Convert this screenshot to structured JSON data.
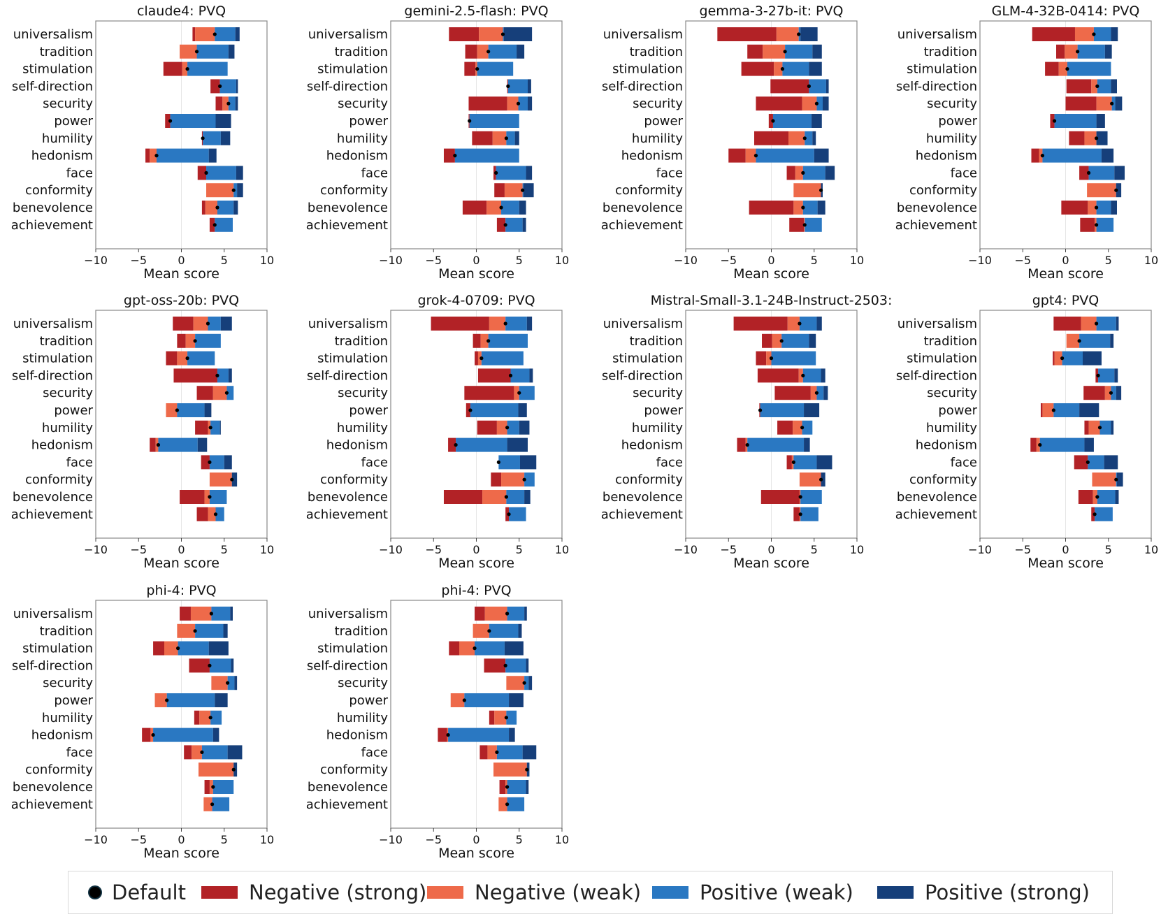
{
  "chart_data": {
    "type": "bar",
    "subtype": "stacked-horizontal-diverging",
    "xlabel": "Mean score",
    "xlim": [
      -10,
      10
    ],
    "xticks": [
      "−10",
      "−5",
      "0",
      "5",
      "10"
    ],
    "categories": [
      "universalism",
      "tradition",
      "stimulation",
      "self-direction",
      "security",
      "power",
      "humility",
      "hedonism",
      "face",
      "conformity",
      "benevolence",
      "achievement"
    ],
    "series_order": [
      "neg_strong",
      "neg_weak",
      "pos_weak",
      "pos_strong"
    ],
    "colors": {
      "neg_strong": "#b22226",
      "neg_weak": "#ee6a4a",
      "pos_weak": "#2a78c2",
      "pos_strong": "#163f7a",
      "default": "#000000",
      "axis": "#888888",
      "grid": "#e6e6e6"
    },
    "legend": {
      "default": "Default",
      "neg_strong": "Negative (strong)",
      "neg_weak": "Negative (weak)",
      "pos_weak": "Positive (weak)",
      "pos_strong": "Positive (strong)"
    },
    "panels": [
      {
        "title": "claude4: PVQ",
        "bars": [
          {
            "ns": 1.3,
            "nw": 1.6,
            "d": 3.9,
            "pw": 6.3,
            "ps": 6.8
          },
          {
            "ns": -0.2,
            "nw": -0.2,
            "d": 1.8,
            "pw": 5.5,
            "ps": 6.2
          },
          {
            "ns": -2.1,
            "nw": 0.1,
            "d": 0.7,
            "pw": 5.4,
            "ps": 5.4
          },
          {
            "ns": 3.4,
            "nw": 4.5,
            "d": 4.5,
            "pw": 6.4,
            "ps": 6.6
          },
          {
            "ns": 4.0,
            "nw": 4.8,
            "d": 5.5,
            "pw": 6.3,
            "ps": 6.6
          },
          {
            "ns": -1.9,
            "nw": -1.3,
            "d": -1.3,
            "pw": 4.0,
            "ps": 5.8
          },
          {
            "ns": 2.4,
            "nw": 2.5,
            "d": 2.5,
            "pw": 4.6,
            "ps": 5.7
          },
          {
            "ns": -4.2,
            "nw": -3.7,
            "d": -2.9,
            "pw": 3.2,
            "ps": 4.1
          },
          {
            "ns": 1.9,
            "nw": 2.9,
            "d": 2.9,
            "pw": 6.4,
            "ps": 7.2
          },
          {
            "ns": 2.9,
            "nw": 2.9,
            "d": 6.1,
            "pw": 6.5,
            "ps": 7.2
          },
          {
            "ns": 2.4,
            "nw": 2.8,
            "d": 4.2,
            "pw": 6.1,
            "ps": 6.6
          },
          {
            "ns": 3.3,
            "nw": 3.9,
            "d": 3.9,
            "pw": 6.0,
            "ps": 6.0
          }
        ]
      },
      {
        "title": "gemini-2.5-flash: PVQ",
        "bars": [
          {
            "ns": -3.2,
            "nw": 0.3,
            "d": 3.1,
            "pw": 3.2,
            "ps": 6.5
          },
          {
            "ns": -1.3,
            "nw": 0.1,
            "d": 1.4,
            "pw": 4.7,
            "ps": 5.6
          },
          {
            "ns": -1.4,
            "nw": -0.1,
            "d": 0.1,
            "pw": 4.3,
            "ps": 4.3
          },
          {
            "ns": 3.6,
            "nw": 3.7,
            "d": 3.7,
            "pw": 6.0,
            "ps": 6.4
          },
          {
            "ns": -0.9,
            "nw": 3.6,
            "d": 4.9,
            "pw": 6.0,
            "ps": 6.5
          },
          {
            "ns": -0.9,
            "nw": -0.8,
            "d": -0.8,
            "pw": 5.0,
            "ps": 5.0
          },
          {
            "ns": -0.5,
            "nw": 1.9,
            "d": 3.5,
            "pw": 4.5,
            "ps": 5.0
          },
          {
            "ns": -3.8,
            "nw": -2.5,
            "d": -2.5,
            "pw": 5.0,
            "ps": 5.0
          },
          {
            "ns": 2.0,
            "nw": 2.3,
            "d": 2.3,
            "pw": 5.8,
            "ps": 6.5
          },
          {
            "ns": 2.1,
            "nw": 3.3,
            "d": 5.4,
            "pw": 5.5,
            "ps": 6.7
          },
          {
            "ns": -1.6,
            "nw": 1.2,
            "d": 2.9,
            "pw": 5.0,
            "ps": 5.8
          },
          {
            "ns": 2.4,
            "nw": 3.4,
            "d": 3.4,
            "pw": 5.4,
            "ps": 5.8
          }
        ]
      },
      {
        "title": "gemma-3-27b-it: PVQ",
        "bars": [
          {
            "ns": -6.3,
            "nw": 0.6,
            "d": 3.2,
            "pw": 3.4,
            "ps": 5.4
          },
          {
            "ns": -2.8,
            "nw": -1.0,
            "d": 1.6,
            "pw": 4.8,
            "ps": 5.9
          },
          {
            "ns": -3.5,
            "nw": 0.3,
            "d": 1.3,
            "pw": 4.4,
            "ps": 5.9
          },
          {
            "ns": -0.1,
            "nw": 4.4,
            "d": 4.4,
            "pw": 6.4,
            "ps": 6.7
          },
          {
            "ns": -1.8,
            "nw": 3.6,
            "d": 5.3,
            "pw": 6.0,
            "ps": 6.7
          },
          {
            "ns": -0.3,
            "nw": 0.2,
            "d": 0.2,
            "pw": 4.7,
            "ps": 5.9
          },
          {
            "ns": -2.0,
            "nw": 2.0,
            "d": 3.9,
            "pw": 4.8,
            "ps": 5.2
          },
          {
            "ns": -5.0,
            "nw": -3.0,
            "d": -1.8,
            "pw": 5.0,
            "ps": 6.7
          },
          {
            "ns": 1.8,
            "nw": 2.8,
            "d": 3.7,
            "pw": 6.3,
            "ps": 7.4
          },
          {
            "ns": 2.6,
            "nw": 2.6,
            "d": 5.8,
            "pw": 5.8,
            "ps": 6.0
          },
          {
            "ns": -2.6,
            "nw": 2.6,
            "d": 3.7,
            "pw": 5.4,
            "ps": 6.3
          },
          {
            "ns": 2.1,
            "nw": 3.8,
            "d": 3.9,
            "pw": 5.9,
            "ps": 5.9
          }
        ]
      },
      {
        "title": "GLM-4-32B-0414: PVQ",
        "bars": [
          {
            "ns": -3.9,
            "nw": 1.1,
            "d": 3.3,
            "pw": 5.3,
            "ps": 6.1
          },
          {
            "ns": -1.1,
            "nw": -0.1,
            "d": 1.4,
            "pw": 4.6,
            "ps": 5.4
          },
          {
            "ns": -2.4,
            "nw": -0.8,
            "d": 0.2,
            "pw": 5.3,
            "ps": 5.3
          },
          {
            "ns": 0.1,
            "nw": 3.0,
            "d": 3.7,
            "pw": 5.3,
            "ps": 6.0
          },
          {
            "ns": 0.0,
            "nw": 3.6,
            "d": 5.4,
            "pw": 5.8,
            "ps": 6.6
          },
          {
            "ns": -1.8,
            "nw": -1.3,
            "d": -1.3,
            "pw": 3.6,
            "ps": 4.6
          },
          {
            "ns": 0.4,
            "nw": 2.2,
            "d": 3.6,
            "pw": 3.6,
            "ps": 4.9
          },
          {
            "ns": -4.0,
            "nw": -3.1,
            "d": -2.7,
            "pw": 4.2,
            "ps": 5.6
          },
          {
            "ns": 1.6,
            "nw": 2.7,
            "d": 2.7,
            "pw": 5.7,
            "ps": 6.9
          },
          {
            "ns": 2.5,
            "nw": 2.5,
            "d": 5.9,
            "pw": 5.9,
            "ps": 6.5
          },
          {
            "ns": -0.5,
            "nw": 2.6,
            "d": 3.6,
            "pw": 5.3,
            "ps": 6.0
          },
          {
            "ns": 1.7,
            "nw": 3.4,
            "d": 3.6,
            "pw": 5.6,
            "ps": 5.6
          }
        ]
      },
      {
        "title": "gpt-oss-20b: PVQ",
        "bars": [
          {
            "ns": -1.0,
            "nw": 1.4,
            "d": 3.1,
            "pw": 4.6,
            "ps": 5.9
          },
          {
            "ns": -0.5,
            "nw": 0.5,
            "d": 1.6,
            "pw": 4.6,
            "ps": 4.6
          },
          {
            "ns": -1.8,
            "nw": -0.5,
            "d": 0.7,
            "pw": 3.9,
            "ps": 3.9
          },
          {
            "ns": -0.9,
            "nw": 4.2,
            "d": 4.2,
            "pw": 5.5,
            "ps": 5.9
          },
          {
            "ns": 1.8,
            "nw": 3.7,
            "d": 5.3,
            "pw": 6.1,
            "ps": 6.1
          },
          {
            "ns": -1.8,
            "nw": -1.8,
            "d": -0.5,
            "pw": 2.7,
            "ps": 3.5
          },
          {
            "ns": 1.6,
            "nw": 3.1,
            "d": 3.4,
            "pw": 4.5,
            "ps": 4.6
          },
          {
            "ns": -3.7,
            "nw": -3.0,
            "d": -2.7,
            "pw": 1.9,
            "ps": 3.0
          },
          {
            "ns": 2.3,
            "nw": 3.3,
            "d": 3.3,
            "pw": 5.0,
            "ps": 5.9
          },
          {
            "ns": 3.3,
            "nw": 3.3,
            "d": 5.9,
            "pw": 5.9,
            "ps": 6.5
          },
          {
            "ns": -0.2,
            "nw": 2.7,
            "d": 3.3,
            "pw": 5.3,
            "ps": 5.3
          },
          {
            "ns": 1.8,
            "nw": 3.1,
            "d": 4.0,
            "pw": 5.0,
            "ps": 5.0
          }
        ]
      },
      {
        "title": "grok-4-0709: PVQ",
        "bars": [
          {
            "ns": -5.3,
            "nw": 1.5,
            "d": 3.4,
            "pw": 5.9,
            "ps": 6.5
          },
          {
            "ns": -0.4,
            "nw": 0.5,
            "d": 1.4,
            "pw": 6.0,
            "ps": 6.0
          },
          {
            "ns": -0.2,
            "nw": 0.2,
            "d": 0.6,
            "pw": 5.5,
            "ps": 5.5
          },
          {
            "ns": 0.2,
            "nw": 4.0,
            "d": 4.0,
            "pw": 6.2,
            "ps": 6.6
          },
          {
            "ns": -1.4,
            "nw": 4.4,
            "d": 5.0,
            "pw": 6.8,
            "ps": 6.8
          },
          {
            "ns": -1.2,
            "nw": -0.7,
            "d": -0.7,
            "pw": 4.9,
            "ps": 5.9
          },
          {
            "ns": 0.1,
            "nw": 2.4,
            "d": 3.6,
            "pw": 5.0,
            "ps": 6.2
          },
          {
            "ns": -3.3,
            "nw": -2.4,
            "d": -2.4,
            "pw": 3.6,
            "ps": 6.0
          },
          {
            "ns": 2.6,
            "nw": 2.6,
            "d": 2.6,
            "pw": 5.1,
            "ps": 7.0
          },
          {
            "ns": 1.7,
            "nw": 2.9,
            "d": 5.6,
            "pw": 6.8,
            "ps": 6.8
          },
          {
            "ns": -3.8,
            "nw": 0.7,
            "d": 3.5,
            "pw": 5.6,
            "ps": 6.3
          },
          {
            "ns": 3.4,
            "nw": 3.8,
            "d": 3.8,
            "pw": 5.8,
            "ps": 5.8
          }
        ]
      },
      {
        "title": "Mistral-Small-3.1-24B-Instruct-2503:",
        "bars": [
          {
            "ns": -4.4,
            "nw": 1.9,
            "d": 3.3,
            "pw": 5.3,
            "ps": 5.9
          },
          {
            "ns": -1.1,
            "nw": 0.1,
            "d": 1.2,
            "pw": 4.4,
            "ps": 5.2
          },
          {
            "ns": -1.8,
            "nw": -0.6,
            "d": 0.0,
            "pw": 5.2,
            "ps": 5.2
          },
          {
            "ns": -1.6,
            "nw": 3.2,
            "d": 3.7,
            "pw": 5.8,
            "ps": 6.3
          },
          {
            "ns": 0.4,
            "nw": 4.6,
            "d": 5.3,
            "pw": 6.1,
            "ps": 6.6
          },
          {
            "ns": -1.4,
            "nw": -1.3,
            "d": -1.3,
            "pw": 3.8,
            "ps": 5.6
          },
          {
            "ns": 0.7,
            "nw": 2.5,
            "d": 3.6,
            "pw": 4.8,
            "ps": 4.8
          },
          {
            "ns": -4.0,
            "nw": -3.0,
            "d": -2.8,
            "pw": 3.8,
            "ps": 4.5
          },
          {
            "ns": 1.8,
            "nw": 2.4,
            "d": 2.6,
            "pw": 5.3,
            "ps": 7.1
          },
          {
            "ns": 3.3,
            "nw": 3.3,
            "d": 5.8,
            "pw": 5.8,
            "ps": 6.3
          },
          {
            "ns": -1.2,
            "nw": 3.3,
            "d": 3.4,
            "pw": 5.9,
            "ps": 5.9
          },
          {
            "ns": 2.6,
            "nw": 3.3,
            "d": 3.4,
            "pw": 5.5,
            "ps": 5.5
          }
        ]
      },
      {
        "title": "gpt4: PVQ",
        "bars": [
          {
            "ns": -1.4,
            "nw": 1.8,
            "d": 3.6,
            "pw": 5.9,
            "ps": 6.2
          },
          {
            "ns": 0.1,
            "nw": 0.1,
            "d": 1.6,
            "pw": 5.2,
            "ps": 5.6
          },
          {
            "ns": -1.5,
            "nw": -1.3,
            "d": -0.4,
            "pw": 2.0,
            "ps": 4.2
          },
          {
            "ns": 3.5,
            "nw": 3.8,
            "d": 3.8,
            "pw": 5.7,
            "ps": 6.1
          },
          {
            "ns": 2.1,
            "nw": 4.6,
            "d": 5.3,
            "pw": 5.9,
            "ps": 6.5
          },
          {
            "ns": -2.9,
            "nw": -2.7,
            "d": -1.4,
            "pw": 1.6,
            "ps": 3.9
          },
          {
            "ns": 2.2,
            "nw": 2.7,
            "d": 4.0,
            "pw": 5.3,
            "ps": 5.6
          },
          {
            "ns": -4.1,
            "nw": -3.4,
            "d": -3.0,
            "pw": 2.2,
            "ps": 3.3
          },
          {
            "ns": 1.0,
            "nw": 2.6,
            "d": 2.6,
            "pw": 4.5,
            "ps": 6.1
          },
          {
            "ns": 3.1,
            "nw": 3.1,
            "d": 5.9,
            "pw": 6.0,
            "ps": 6.7
          },
          {
            "ns": 1.5,
            "nw": 3.2,
            "d": 3.7,
            "pw": 5.8,
            "ps": 6.2
          },
          {
            "ns": 3.0,
            "nw": 3.4,
            "d": 3.4,
            "pw": 5.5,
            "ps": 5.5
          }
        ]
      },
      {
        "title": "phi-4: PVQ",
        "bars": [
          {
            "ns": -0.2,
            "nw": 1.1,
            "d": 3.5,
            "pw": 5.7,
            "ps": 6.0
          },
          {
            "ns": -0.5,
            "nw": -0.5,
            "d": 1.6,
            "pw": 4.9,
            "ps": 5.4
          },
          {
            "ns": -3.3,
            "nw": -2.0,
            "d": -0.4,
            "pw": 3.2,
            "ps": 5.5
          },
          {
            "ns": 0.9,
            "nw": 3.3,
            "d": 3.3,
            "pw": 5.8,
            "ps": 6.1
          },
          {
            "ns": 3.5,
            "nw": 3.5,
            "d": 5.4,
            "pw": 6.2,
            "ps": 6.5
          },
          {
            "ns": -3.1,
            "nw": -3.1,
            "d": -1.7,
            "pw": 3.9,
            "ps": 5.4
          },
          {
            "ns": 1.5,
            "nw": 2.1,
            "d": 3.4,
            "pw": 4.7,
            "ps": 4.7
          },
          {
            "ns": -4.6,
            "nw": -3.6,
            "d": -3.3,
            "pw": 3.7,
            "ps": 4.4
          },
          {
            "ns": 0.3,
            "nw": 1.2,
            "d": 2.4,
            "pw": 5.4,
            "ps": 7.1
          },
          {
            "ns": 2.0,
            "nw": 2.0,
            "d": 6.1,
            "pw": 6.1,
            "ps": 6.5
          },
          {
            "ns": 2.7,
            "nw": 3.3,
            "d": 3.7,
            "pw": 6.1,
            "ps": 6.1
          },
          {
            "ns": 2.6,
            "nw": 2.6,
            "d": 3.6,
            "pw": 5.6,
            "ps": 5.6
          }
        ]
      },
      {
        "title": "phi-4: PVQ",
        "bars": [
          {
            "ns": -0.2,
            "nw": 1.0,
            "d": 3.6,
            "pw": 5.6,
            "ps": 5.9
          },
          {
            "ns": -0.4,
            "nw": -0.4,
            "d": 1.5,
            "pw": 4.9,
            "ps": 5.3
          },
          {
            "ns": -3.2,
            "nw": -2.0,
            "d": -0.2,
            "pw": 3.3,
            "ps": 5.5
          },
          {
            "ns": 0.9,
            "nw": 3.4,
            "d": 3.4,
            "pw": 5.8,
            "ps": 6.1
          },
          {
            "ns": 3.5,
            "nw": 3.5,
            "d": 5.6,
            "pw": 6.1,
            "ps": 6.5
          },
          {
            "ns": -3.0,
            "nw": -3.0,
            "d": -1.4,
            "pw": 3.8,
            "ps": 5.5
          },
          {
            "ns": 1.5,
            "nw": 2.1,
            "d": 3.5,
            "pw": 4.7,
            "ps": 4.7
          },
          {
            "ns": -4.5,
            "nw": -3.4,
            "d": -3.3,
            "pw": 3.8,
            "ps": 4.5
          },
          {
            "ns": 0.4,
            "nw": 1.3,
            "d": 2.4,
            "pw": 5.4,
            "ps": 7.0
          },
          {
            "ns": 2.0,
            "nw": 2.0,
            "d": 5.9,
            "pw": 5.9,
            "ps": 6.2
          },
          {
            "ns": 2.7,
            "nw": 3.4,
            "d": 3.6,
            "pw": 5.8,
            "ps": 6.1
          },
          {
            "ns": 2.6,
            "nw": 2.6,
            "d": 3.6,
            "pw": 5.6,
            "ps": 5.6
          }
        ]
      }
    ]
  }
}
